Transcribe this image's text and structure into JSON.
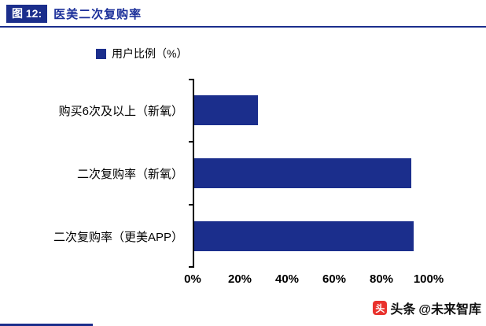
{
  "header": {
    "tag": "图 12:",
    "title": "医美二次复购率"
  },
  "legend": {
    "label": "用户比例（%）"
  },
  "chart_data": {
    "type": "bar",
    "orientation": "horizontal",
    "title": "医美二次复购率",
    "categories": [
      "购买6次及以上（新氧）",
      "二次复购率（新氧）",
      "二次复购率（更美APP）"
    ],
    "values": [
      27,
      92,
      93
    ],
    "series": [
      {
        "name": "用户比例（%）",
        "values": [
          27,
          92,
          93
        ]
      }
    ],
    "xlabel": "",
    "ylabel": "",
    "xlim": [
      0,
      100
    ],
    "x_ticks": [
      "0%",
      "20%",
      "40%",
      "60%",
      "80%",
      "100%"
    ],
    "grid": false,
    "legend_position": "top"
  },
  "watermark": {
    "icon_char": "头",
    "source": "头条",
    "handle": "@未来智库"
  },
  "colors": {
    "bar": "#1b2e8c",
    "accent": "#1b2e8c",
    "watermark_red": "#e9322d"
  }
}
